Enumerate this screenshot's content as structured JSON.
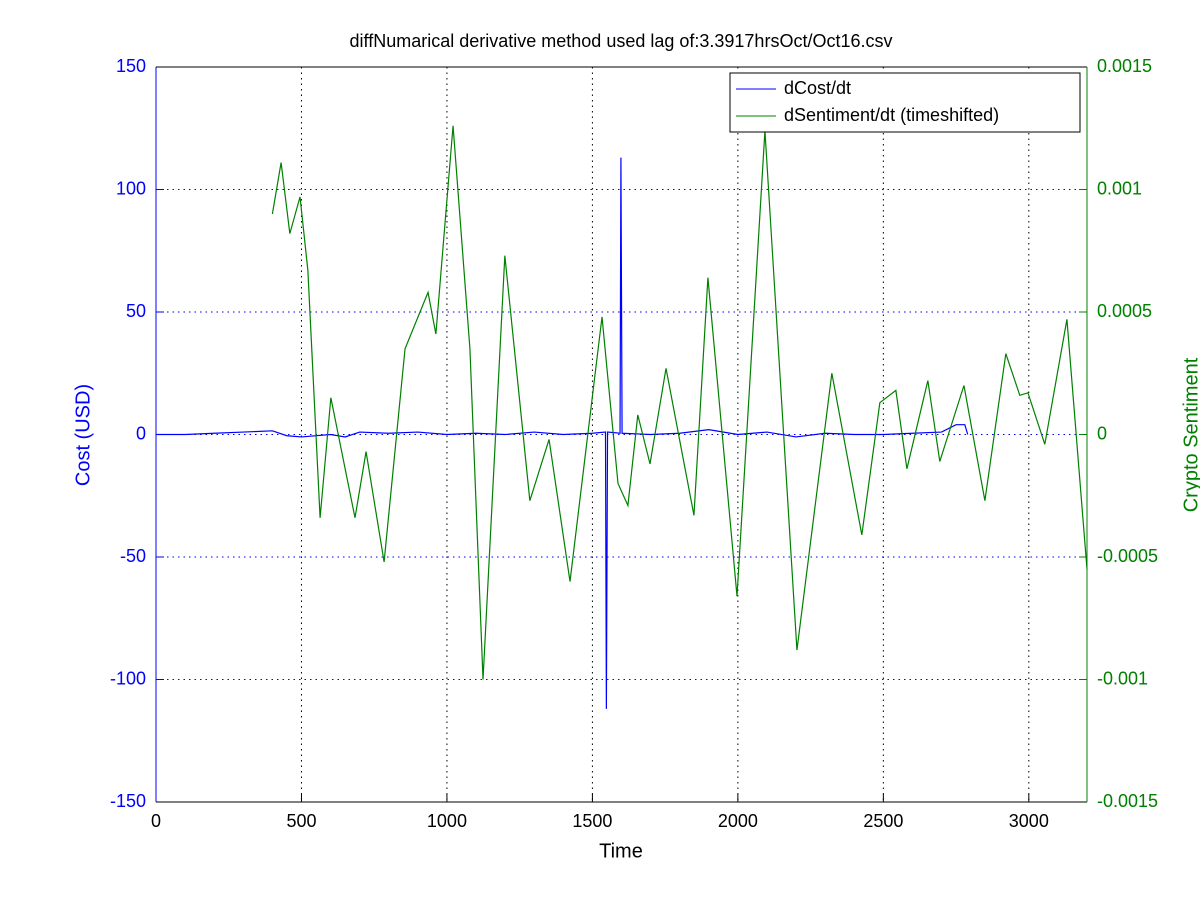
{
  "chart_data": {
    "type": "line",
    "title": "diffNumarical derivative method used lag of:3.3917hrsOct/Oct16.csv",
    "xlabel": "Time",
    "ylabel": "Cost (USD)",
    "y2label": "Crypto Sentiment",
    "xlim": [
      0,
      3200
    ],
    "xticks": [
      0,
      500,
      1000,
      1500,
      2000,
      2500,
      3000
    ],
    "ylim": [
      -150,
      150
    ],
    "yticks": [
      -150,
      -100,
      -50,
      0,
      50,
      100,
      150
    ],
    "y2lim": [
      -0.0015,
      0.0015
    ],
    "y2ticks": [
      -0.0015,
      -0.001,
      -0.0005,
      0,
      0.0005,
      0.001,
      0.0015
    ],
    "grid": true,
    "legend": "upper right",
    "series": [
      {
        "name": "dCost/dt",
        "color": "#0000ff",
        "x": [
          0,
          100,
          200,
          300,
          400,
          450,
          500,
          600,
          650,
          700,
          800,
          900,
          1000,
          1100,
          1200,
          1300,
          1400,
          1500,
          1545,
          1548,
          1552,
          1595,
          1598,
          1602,
          1700,
          1800,
          1900,
          2000,
          2100,
          2200,
          2300,
          2400,
          2500,
          2600,
          2700,
          2750,
          2780,
          2790
        ],
        "values": [
          0,
          0,
          0.5,
          1,
          1.5,
          -0.5,
          -1,
          0,
          -1,
          1,
          0.5,
          1,
          0,
          0.5,
          0,
          1,
          0,
          0.5,
          1,
          -112,
          1,
          0.5,
          113,
          0.5,
          0,
          0.5,
          2,
          0,
          1,
          -1,
          0.5,
          0,
          0,
          0.5,
          1,
          4,
          4,
          0
        ]
      },
      {
        "name": "dSentiment/dt (timeshifted)",
        "color": "#008000",
        "axis": "y2",
        "x": [
          400,
          430,
          460,
          495,
          522,
          564,
          601,
          684,
          722,
          784,
          856,
          935,
          962,
          1021,
          1079,
          1124,
          1199,
          1285,
          1351,
          1423,
          1533,
          1588,
          1622,
          1656,
          1698,
          1753,
          1849,
          1897,
          1997,
          2093,
          2203,
          2323,
          2426,
          2488,
          2543,
          2581,
          2653,
          2694,
          2777,
          2849,
          2921,
          2969,
          2997,
          3055,
          3131,
          3200
        ],
        "values": [
          0.0009,
          0.00111,
          0.00082,
          0.00097,
          0.00067,
          -0.00034,
          0.00015,
          -0.00034,
          -7e-05,
          -0.00052,
          0.00035,
          0.00058,
          0.00041,
          0.00126,
          0.00035,
          -0.001,
          0.00073,
          -0.00027,
          -2e-05,
          -0.0006,
          0.00048,
          -0.0002,
          -0.00029,
          8e-05,
          -0.00012,
          0.00027,
          -0.00033,
          0.00064,
          -0.00066,
          0.00124,
          -0.00088,
          0.00025,
          -0.00041,
          0.00013,
          0.00018,
          -0.00014,
          0.00022,
          -0.00011,
          0.0002,
          -0.00027,
          0.00033,
          0.00016,
          0.00017,
          -4e-05,
          0.00047,
          -0.00055
        ]
      }
    ]
  }
}
